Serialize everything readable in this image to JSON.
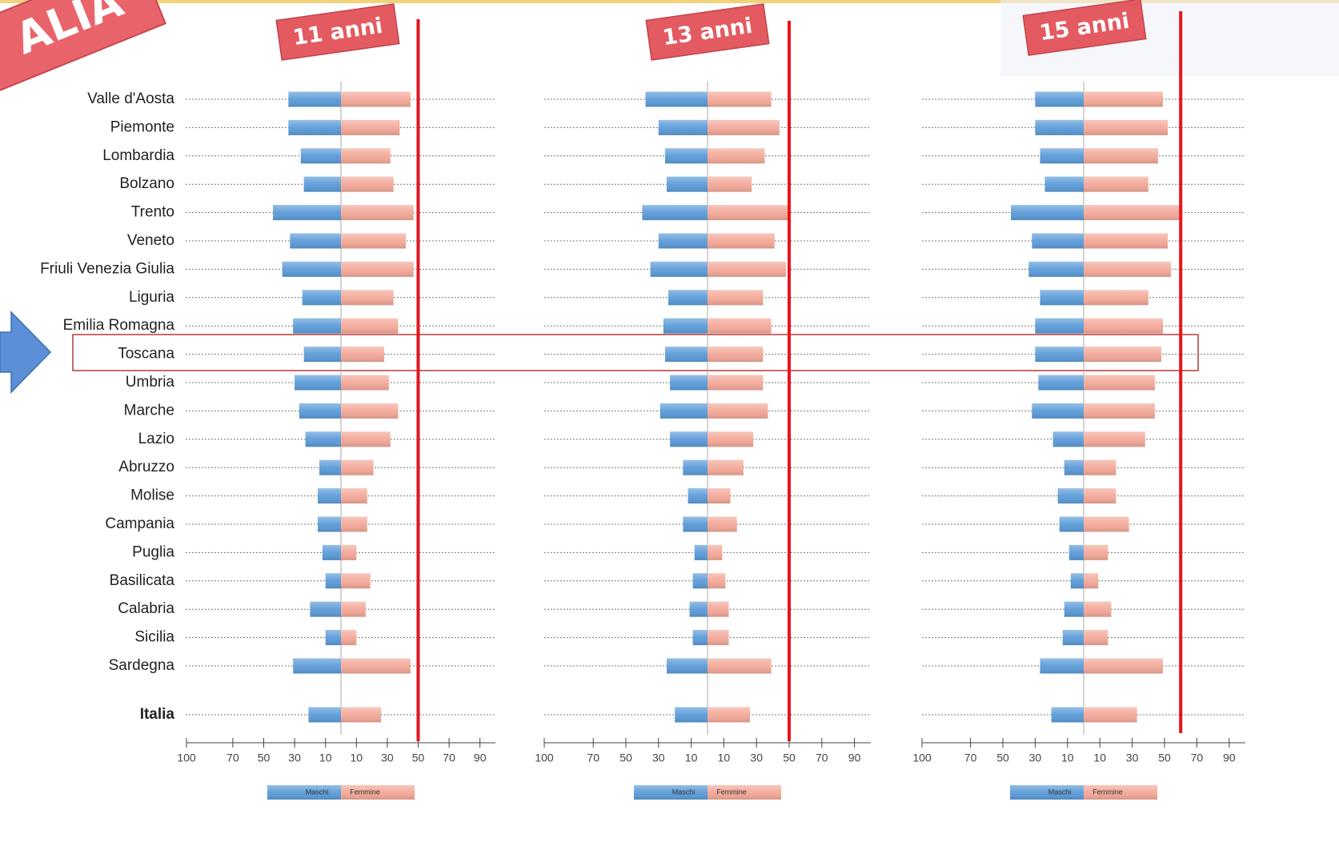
{
  "banner": "ALIA",
  "chart_data": [
    {
      "type": "butterfly",
      "title": "11 anni",
      "categories": [
        "Valle d'Aosta",
        "Piemonte",
        "Lombardia",
        "Bolzano",
        "Trento",
        "Veneto",
        "Friuli Venezia Giulia",
        "Liguria",
        "Emilia Romagna",
        "Toscana",
        "Umbria",
        "Marche",
        "Lazio",
        "Abruzzo",
        "Molise",
        "Campania",
        "Puglia",
        "Basilicata",
        "Calabria",
        "Sicilia",
        "Sardegna",
        "Italia"
      ],
      "series": [
        {
          "name": "Maschi",
          "color": "#5b9bd8",
          "values": [
            34,
            34,
            26,
            24,
            44,
            33,
            38,
            25,
            31,
            24,
            30,
            27,
            23,
            14,
            15,
            15,
            12,
            10,
            20,
            10,
            31,
            21
          ]
        },
        {
          "name": "Femmine",
          "color": "#f3a898",
          "values": [
            45,
            38,
            32,
            34,
            47,
            42,
            47,
            34,
            37,
            28,
            31,
            37,
            32,
            21,
            17,
            17,
            10,
            19,
            16,
            10,
            45,
            26
          ]
        }
      ],
      "xlim": [
        -100,
        100
      ],
      "xticks": [
        {
          "value": -100,
          "label": "100"
        },
        {
          "value": -70,
          "label": "70"
        },
        {
          "value": -50,
          "label": "50"
        },
        {
          "value": -30,
          "label": "30"
        },
        {
          "value": -10,
          "label": "10"
        },
        10,
        30,
        50,
        70,
        90
      ],
      "reference_line": 50
    },
    {
      "type": "butterfly",
      "title": "13 anni",
      "categories": [
        null,
        null,
        null,
        null,
        null,
        null,
        null,
        null,
        null,
        null,
        null,
        null,
        null,
        null,
        null,
        null,
        null,
        null,
        null,
        null,
        null,
        null
      ],
      "series": [
        {
          "name": "Maschi",
          "color": "#5b9bd8",
          "values": [
            38,
            30,
            26,
            25,
            40,
            30,
            35,
            24,
            27,
            26,
            23,
            29,
            23,
            15,
            12,
            15,
            8,
            9,
            11,
            9,
            25,
            20
          ]
        },
        {
          "name": "Femmine",
          "color": "#f3a898",
          "values": [
            39,
            44,
            35,
            27,
            50,
            41,
            48,
            34,
            39,
            34,
            34,
            37,
            28,
            22,
            14,
            18,
            9,
            11,
            13,
            13,
            39,
            26
          ]
        }
      ],
      "xlim": [
        -100,
        100
      ],
      "xticks": [
        {
          "value": -100,
          "label": "100"
        },
        {
          "value": -70,
          "label": "70"
        },
        {
          "value": -50,
          "label": "50"
        },
        {
          "value": -30,
          "label": "30"
        },
        {
          "value": -10,
          "label": "10"
        },
        10,
        30,
        50,
        70,
        90
      ],
      "reference_line": 50
    },
    {
      "type": "butterfly",
      "title": "15 anni",
      "categories": [
        null,
        null,
        null,
        null,
        null,
        null,
        null,
        null,
        null,
        null,
        null,
        null,
        null,
        null,
        null,
        null,
        null,
        null,
        null,
        null,
        null,
        null
      ],
      "series": [
        {
          "name": "Maschi",
          "color": "#5b9bd8",
          "values": [
            30,
            30,
            27,
            24,
            45,
            32,
            34,
            27,
            30,
            30,
            28,
            32,
            19,
            12,
            16,
            15,
            9,
            8,
            12,
            13,
            27,
            20
          ]
        },
        {
          "name": "Femmine",
          "color": "#f3a898",
          "values": [
            49,
            52,
            46,
            40,
            61,
            52,
            54,
            40,
            49,
            48,
            44,
            44,
            38,
            20,
            20,
            28,
            15,
            9,
            17,
            15,
            49,
            33
          ]
        }
      ],
      "xlim": [
        -100,
        100
      ],
      "xticks": [
        {
          "value": -100,
          "label": "100"
        },
        {
          "value": -70,
          "label": "70"
        },
        {
          "value": -50,
          "label": "50"
        },
        {
          "value": -30,
          "label": "30"
        },
        {
          "value": -10,
          "label": "10"
        },
        10,
        30,
        50,
        70,
        90
      ],
      "reference_line": 60
    }
  ]
}
